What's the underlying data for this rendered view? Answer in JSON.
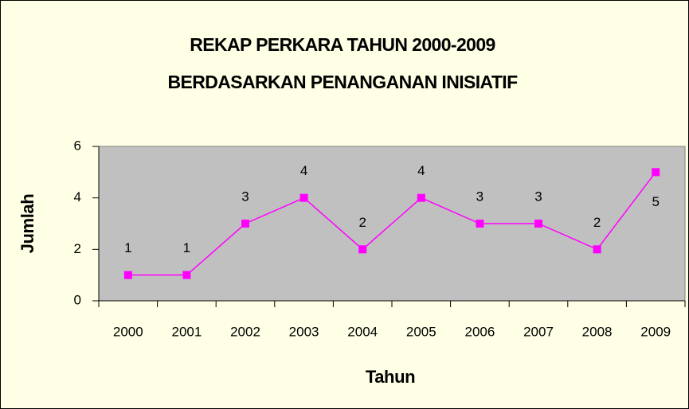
{
  "chart_data": {
    "type": "line",
    "title": "REKAP PERKARA TAHUN 2000-2009",
    "subtitle": "BERDASARKAN PENANGANAN INISIATIF",
    "x_label": "Tahun",
    "y_label": "Jumlah",
    "categories": [
      "2000",
      "2001",
      "2002",
      "2003",
      "2004",
      "2005",
      "2006",
      "2007",
      "2008",
      "2009"
    ],
    "values": [
      1,
      1,
      3,
      4,
      2,
      4,
      3,
      3,
      2,
      5
    ],
    "color": "#ff00ff",
    "ylim": [
      0,
      6
    ],
    "yticks": [
      0,
      2,
      4,
      6
    ],
    "grid": false
  }
}
